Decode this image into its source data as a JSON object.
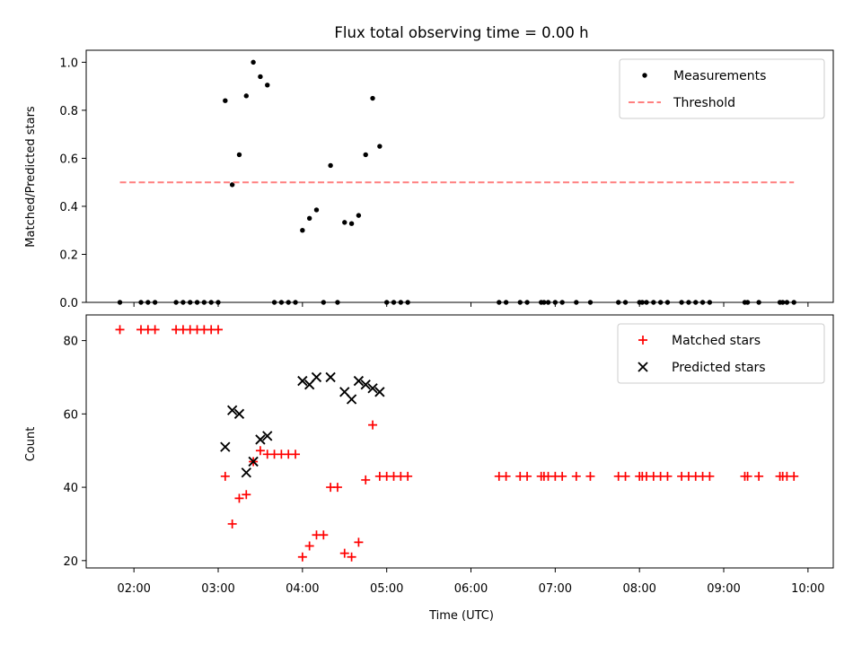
{
  "title": "Flux total observing time = 0.00 h",
  "colors": {
    "measurement": "#000000",
    "threshold": "#ff7f7f",
    "matched": "#ff0000",
    "predicted": "#000000"
  },
  "chart_data": [
    {
      "type": "scatter",
      "ylabel": "Matched/Predicted stars",
      "ylim": [
        0,
        1.05
      ],
      "yticks": [
        0.0,
        0.2,
        0.4,
        0.6,
        0.8,
        1.0
      ],
      "ytick_labels": [
        "0.0",
        "0.2",
        "0.4",
        "0.6",
        "0.8",
        "1.0"
      ],
      "xlim": [
        "01:26",
        "10:18"
      ],
      "legend_position": "top-right",
      "series": [
        {
          "name": "Measurements",
          "marker": "dot",
          "points": [
            [
              "01:50",
              0
            ],
            [
              "02:05",
              0
            ],
            [
              "02:10",
              0
            ],
            [
              "02:15",
              0
            ],
            [
              "02:30",
              0
            ],
            [
              "02:35",
              0
            ],
            [
              "02:40",
              0
            ],
            [
              "02:45",
              0
            ],
            [
              "02:50",
              0
            ],
            [
              "02:55",
              0
            ],
            [
              "03:00",
              0
            ],
            [
              "03:05",
              0.84
            ],
            [
              "03:10",
              0.49
            ],
            [
              "03:15",
              0.615
            ],
            [
              "03:20",
              0.86
            ],
            [
              "03:25",
              1.0
            ],
            [
              "03:30",
              0.94
            ],
            [
              "03:35",
              0.905
            ],
            [
              "03:40",
              0
            ],
            [
              "03:45",
              0
            ],
            [
              "03:50",
              0
            ],
            [
              "03:55",
              0
            ],
            [
              "04:00",
              0.3
            ],
            [
              "04:05",
              0.35
            ],
            [
              "04:10",
              0.385
            ],
            [
              "04:15",
              0
            ],
            [
              "04:20",
              0.57
            ],
            [
              "04:25",
              0
            ],
            [
              "04:30",
              0.333
            ],
            [
              "04:35",
              0.328
            ],
            [
              "04:40",
              0.362
            ],
            [
              "04:45",
              0.615
            ],
            [
              "04:50",
              0.85
            ],
            [
              "04:55",
              0.65
            ],
            [
              "05:00",
              0
            ],
            [
              "05:05",
              0
            ],
            [
              "05:10",
              0
            ],
            [
              "05:15",
              0
            ],
            [
              "06:20",
              0
            ],
            [
              "06:25",
              0
            ],
            [
              "06:35",
              0
            ],
            [
              "06:40",
              0
            ],
            [
              "06:50",
              0
            ],
            [
              "06:52",
              0
            ],
            [
              "06:55",
              0
            ],
            [
              "07:00",
              0
            ],
            [
              "07:05",
              0
            ],
            [
              "07:15",
              0
            ],
            [
              "07:25",
              0
            ],
            [
              "07:45",
              0
            ],
            [
              "07:50",
              0
            ],
            [
              "08:00",
              0
            ],
            [
              "08:02",
              0
            ],
            [
              "08:05",
              0
            ],
            [
              "08:10",
              0
            ],
            [
              "08:15",
              0
            ],
            [
              "08:20",
              0
            ],
            [
              "08:30",
              0
            ],
            [
              "08:35",
              0
            ],
            [
              "08:40",
              0
            ],
            [
              "08:45",
              0
            ],
            [
              "08:50",
              0
            ],
            [
              "09:15",
              0
            ],
            [
              "09:17",
              0
            ],
            [
              "09:25",
              0
            ],
            [
              "09:40",
              0
            ],
            [
              "09:42",
              0
            ],
            [
              "09:45",
              0
            ],
            [
              "09:50",
              0
            ]
          ]
        },
        {
          "name": "Threshold",
          "style": "dashed-line",
          "points": [
            [
              "01:50",
              0.5
            ],
            [
              "09:50",
              0.5
            ]
          ]
        }
      ]
    },
    {
      "type": "scatter",
      "xlabel": "Time (UTC)",
      "ylabel": "Count",
      "ylim": [
        18,
        87
      ],
      "yticks": [
        20,
        40,
        60,
        80
      ],
      "ytick_labels": [
        "20",
        "40",
        "60",
        "80"
      ],
      "xlim": [
        "01:26",
        "10:18"
      ],
      "xticks": [
        "02:00",
        "03:00",
        "04:00",
        "05:00",
        "06:00",
        "07:00",
        "08:00",
        "09:00",
        "10:00"
      ],
      "legend_position": "top-right",
      "series": [
        {
          "name": "Matched stars",
          "marker": "plus",
          "points": [
            [
              "01:50",
              83
            ],
            [
              "02:05",
              83
            ],
            [
              "02:10",
              83
            ],
            [
              "02:15",
              83
            ],
            [
              "02:30",
              83
            ],
            [
              "02:35",
              83
            ],
            [
              "02:40",
              83
            ],
            [
              "02:45",
              83
            ],
            [
              "02:50",
              83
            ],
            [
              "02:55",
              83
            ],
            [
              "03:00",
              83
            ],
            [
              "03:05",
              43
            ],
            [
              "03:10",
              30
            ],
            [
              "03:15",
              37
            ],
            [
              "03:20",
              38
            ],
            [
              "03:25",
              47
            ],
            [
              "03:30",
              50
            ],
            [
              "03:35",
              49
            ],
            [
              "03:40",
              49
            ],
            [
              "03:45",
              49
            ],
            [
              "03:50",
              49
            ],
            [
              "03:55",
              49
            ],
            [
              "04:00",
              21
            ],
            [
              "04:05",
              24
            ],
            [
              "04:10",
              27
            ],
            [
              "04:15",
              27
            ],
            [
              "04:20",
              40
            ],
            [
              "04:25",
              40
            ],
            [
              "04:30",
              22
            ],
            [
              "04:35",
              21
            ],
            [
              "04:40",
              25
            ],
            [
              "04:45",
              42
            ],
            [
              "04:50",
              57
            ],
            [
              "04:55",
              43
            ],
            [
              "05:00",
              43
            ],
            [
              "05:05",
              43
            ],
            [
              "05:10",
              43
            ],
            [
              "05:15",
              43
            ],
            [
              "06:20",
              43
            ],
            [
              "06:25",
              43
            ],
            [
              "06:35",
              43
            ],
            [
              "06:40",
              43
            ],
            [
              "06:50",
              43
            ],
            [
              "06:52",
              43
            ],
            [
              "06:55",
              43
            ],
            [
              "07:00",
              43
            ],
            [
              "07:05",
              43
            ],
            [
              "07:15",
              43
            ],
            [
              "07:25",
              43
            ],
            [
              "07:45",
              43
            ],
            [
              "07:50",
              43
            ],
            [
              "08:00",
              43
            ],
            [
              "08:02",
              43
            ],
            [
              "08:05",
              43
            ],
            [
              "08:10",
              43
            ],
            [
              "08:15",
              43
            ],
            [
              "08:20",
              43
            ],
            [
              "08:30",
              43
            ],
            [
              "08:35",
              43
            ],
            [
              "08:40",
              43
            ],
            [
              "08:45",
              43
            ],
            [
              "08:50",
              43
            ],
            [
              "09:15",
              43
            ],
            [
              "09:17",
              43
            ],
            [
              "09:25",
              43
            ],
            [
              "09:40",
              43
            ],
            [
              "09:42",
              43
            ],
            [
              "09:45",
              43
            ],
            [
              "09:50",
              43
            ]
          ]
        },
        {
          "name": "Predicted stars",
          "marker": "x",
          "points": [
            [
              "03:05",
              51
            ],
            [
              "03:10",
              61
            ],
            [
              "03:15",
              60
            ],
            [
              "03:20",
              44
            ],
            [
              "03:25",
              47
            ],
            [
              "03:30",
              53
            ],
            [
              "03:35",
              54
            ],
            [
              "04:00",
              69
            ],
            [
              "04:05",
              68
            ],
            [
              "04:10",
              70
            ],
            [
              "04:20",
              70
            ],
            [
              "04:30",
              66
            ],
            [
              "04:35",
              64
            ],
            [
              "04:40",
              69
            ],
            [
              "04:45",
              68
            ],
            [
              "04:50",
              67
            ],
            [
              "04:55",
              66
            ]
          ]
        }
      ]
    }
  ]
}
